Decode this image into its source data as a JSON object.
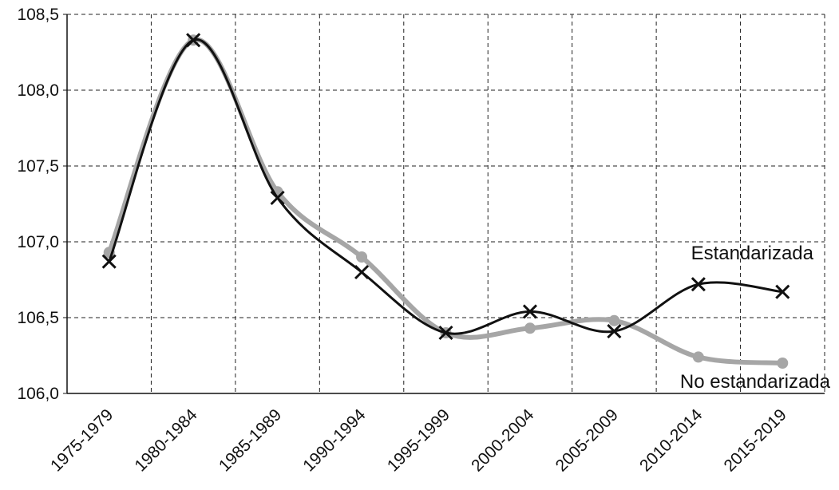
{
  "chart_data": {
    "type": "line",
    "categories": [
      "1975-1979",
      "1980-1984",
      "1985-1989",
      "1990-1994",
      "1995-1999",
      "2000-2004",
      "2005-2009",
      "2010-2014",
      "2015-2019"
    ],
    "series": [
      {
        "name": "Estandarizada",
        "values": [
          106.87,
          108.33,
          107.29,
          106.8,
          106.4,
          106.54,
          106.41,
          106.72,
          106.67
        ],
        "color": "#111111",
        "marker": "x"
      },
      {
        "name": "No estandarizada",
        "values": [
          106.93,
          108.33,
          107.33,
          106.9,
          106.4,
          106.43,
          106.48,
          106.24,
          106.2
        ],
        "color": "#a6a6a6",
        "marker": "circle"
      }
    ],
    "y_ticks": [
      "106,0",
      "106,5",
      "107,0",
      "107,5",
      "108,0",
      "108,5"
    ],
    "ylim": [
      106.0,
      108.5
    ],
    "grid": true,
    "grid_style": "dashed",
    "labels_placement": "right, at series ends"
  }
}
